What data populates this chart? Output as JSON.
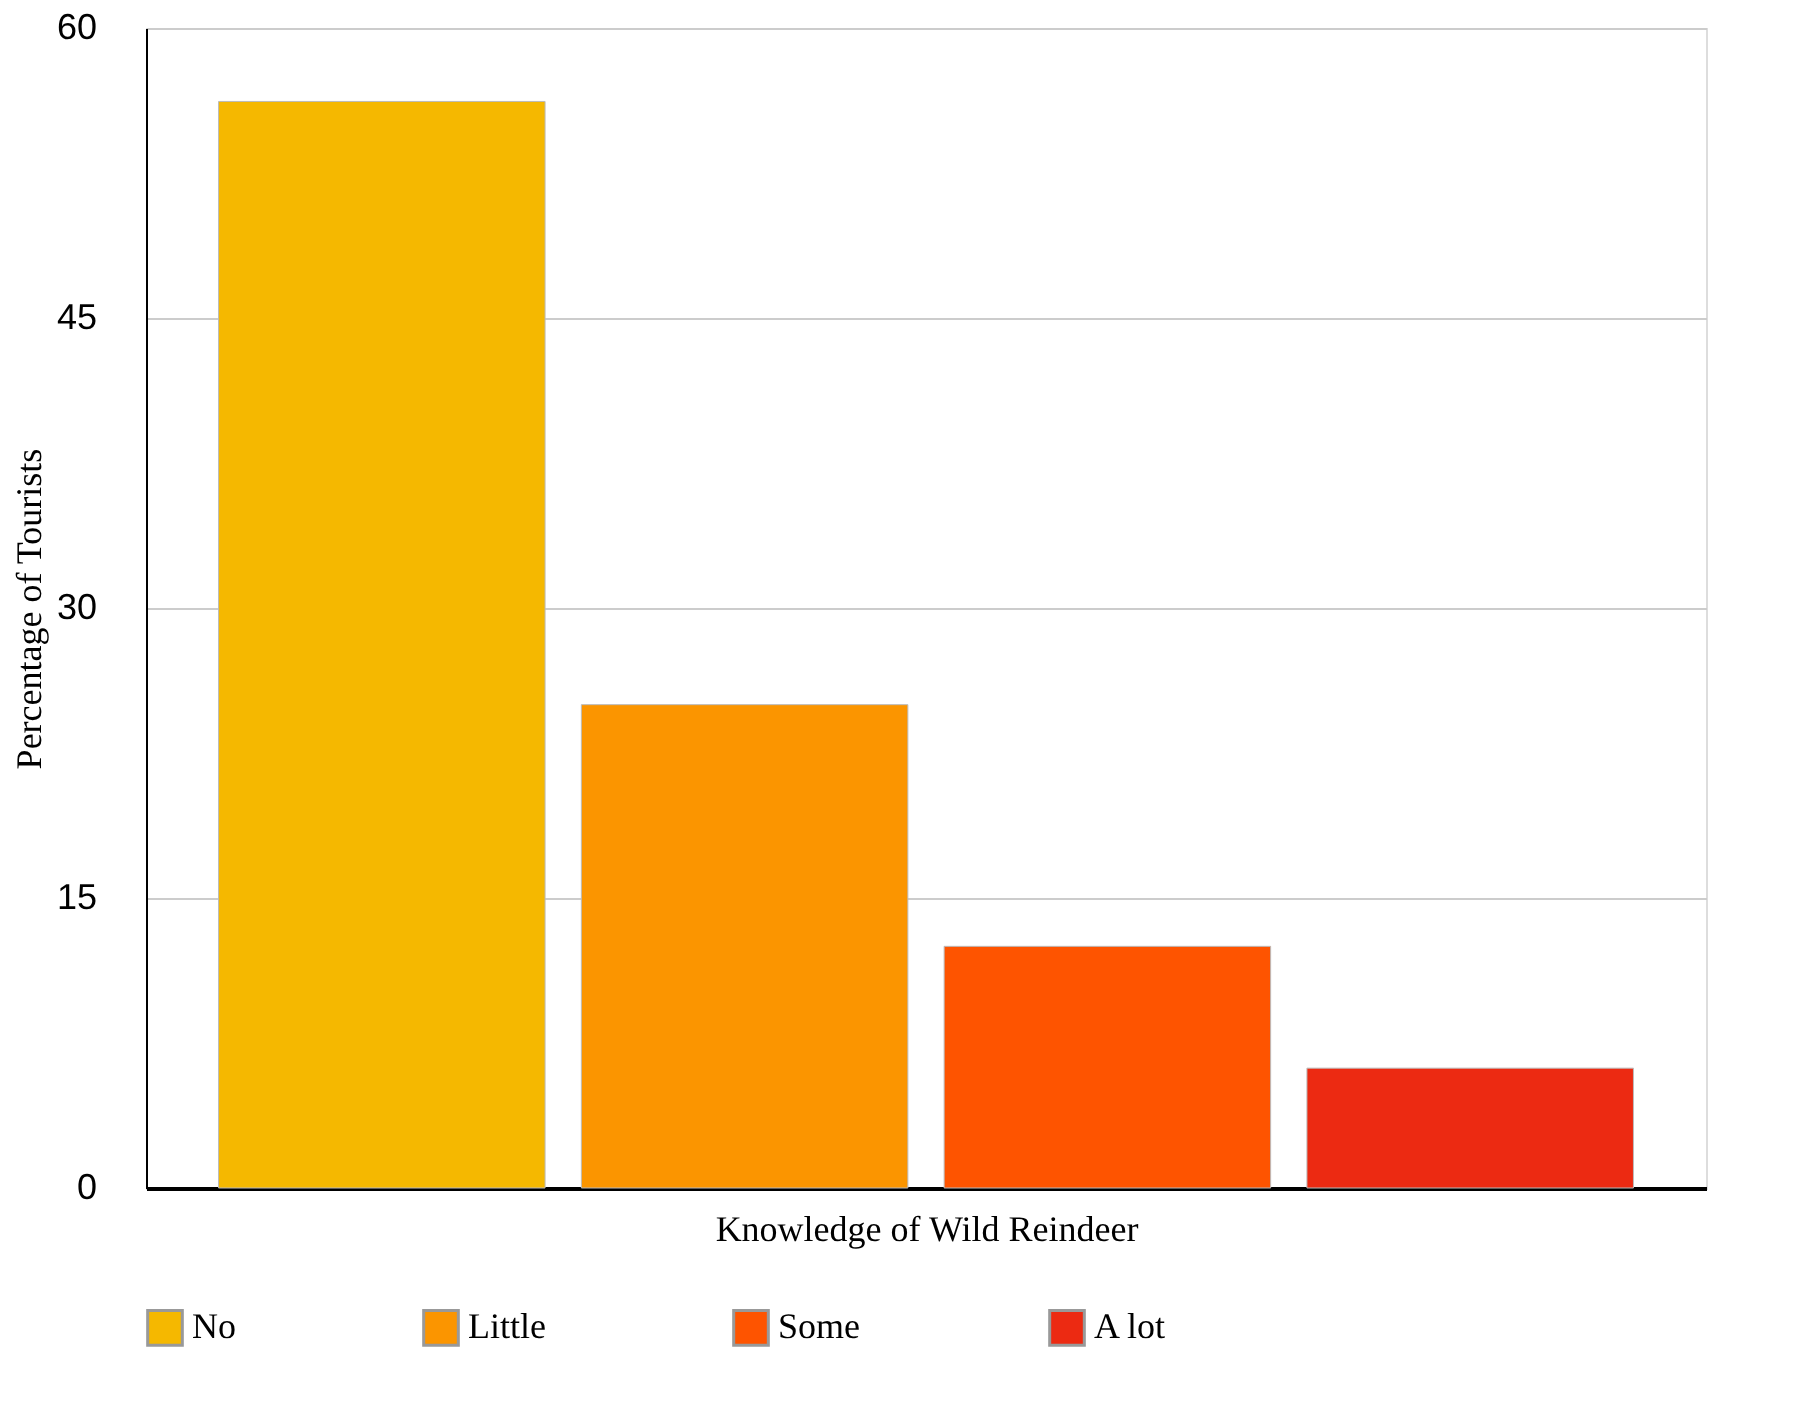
{
  "chart_data": {
    "type": "bar",
    "xlabel": "Knowledge of Wild Reindeer",
    "ylabel": "Percentage of Tourists",
    "categories": [
      null
    ],
    "series": [
      {
        "name": "No",
        "color": "#f5b800",
        "values": [
          56.2
        ]
      },
      {
        "name": "Little",
        "color": "#fb9500",
        "values": [
          25.0
        ]
      },
      {
        "name": "Some",
        "color": "#fe5400",
        "values": [
          12.5
        ]
      },
      {
        "name": "A lot",
        "color": "#ec2a12",
        "values": [
          6.2
        ]
      }
    ],
    "ylim": [
      0,
      60
    ],
    "yticks": [
      0,
      15,
      30,
      45,
      60
    ],
    "grid": "y",
    "legend": "bottom",
    "tick_labels": "y"
  }
}
